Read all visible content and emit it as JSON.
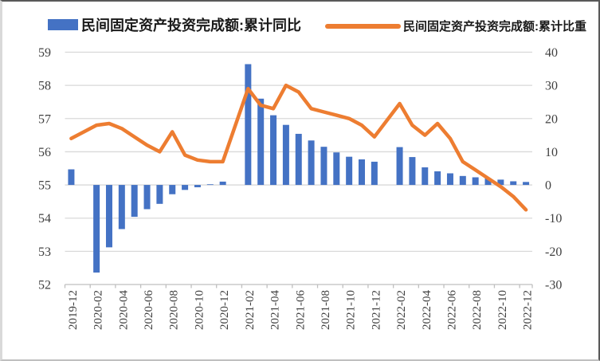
{
  "legend": [
    {
      "label": "民间固定资产投资完成额:累计同比",
      "type": "bar",
      "color": "#4472C4"
    },
    {
      "label": "民间固定资产投资完成额:累计比重",
      "type": "line",
      "color": "#ED7D31"
    }
  ],
  "colors": {
    "bar": "#4472C4",
    "line": "#ED7D31",
    "gridline": "#D9D9D9",
    "axis_line": "#BFBFBF",
    "axis_text": "#404040",
    "frame_dark": "#595959"
  },
  "chart_data": {
    "type": "bar+line",
    "title": "",
    "grid": "horizontal",
    "legend_position": "top",
    "categories": [
      "2019-12",
      "2020-01",
      "2020-02",
      "2020-03",
      "2020-04",
      "2020-05",
      "2020-06",
      "2020-07",
      "2020-08",
      "2020-09",
      "2020-10",
      "2020-11",
      "2020-12",
      "2021-01",
      "2021-02",
      "2021-03",
      "2021-04",
      "2021-05",
      "2021-06",
      "2021-07",
      "2021-08",
      "2021-09",
      "2021-10",
      "2021-11",
      "2021-12",
      "2022-01",
      "2022-02",
      "2022-03",
      "2022-04",
      "2022-05",
      "2022-06",
      "2022-07",
      "2022-08",
      "2022-09",
      "2022-10",
      "2022-11",
      "2022-12"
    ],
    "series": [
      {
        "name": "民间固定资产投资完成额:累计同比",
        "type": "bar",
        "axis": "right",
        "color": "#4472C4",
        "values": [
          4.7,
          null,
          -26.4,
          -18.8,
          -13.3,
          -9.6,
          -7.3,
          -5.7,
          -2.8,
          -1.5,
          -0.7,
          0.2,
          1.0,
          null,
          36.4,
          26.0,
          21.0,
          18.1,
          15.4,
          13.4,
          11.5,
          9.8,
          8.5,
          7.7,
          7.0,
          null,
          11.4,
          8.4,
          5.3,
          4.1,
          3.5,
          2.7,
          2.3,
          2.0,
          1.6,
          1.1,
          0.9
        ]
      },
      {
        "name": "民间固定资产投资完成额:累计比重",
        "type": "line",
        "axis": "left",
        "color": "#ED7D31",
        "values": [
          56.4,
          null,
          56.8,
          56.85,
          56.7,
          56.45,
          56.2,
          56.0,
          56.6,
          55.9,
          55.75,
          55.7,
          55.7,
          null,
          57.9,
          57.4,
          57.3,
          58.0,
          57.8,
          57.3,
          57.2,
          57.1,
          57.0,
          56.8,
          56.45,
          null,
          57.45,
          56.8,
          56.5,
          56.85,
          56.4,
          55.7,
          55.45,
          55.2,
          54.95,
          54.65,
          54.25
        ]
      }
    ],
    "left_axis": {
      "min": 52,
      "max": 59,
      "ticks": [
        52,
        53,
        54,
        55,
        56,
        57,
        58,
        59
      ]
    },
    "right_axis": {
      "min": -30,
      "max": 40,
      "ticks": [
        -30,
        -20,
        -10,
        0,
        10,
        20,
        30,
        40
      ]
    },
    "x_tick_labels": [
      "2019-12",
      "2020-02",
      "2020-04",
      "2020-06",
      "2020-08",
      "2020-10",
      "2020-12",
      "2021-02",
      "2021-04",
      "2021-06",
      "2021-08",
      "2021-10",
      "2021-12",
      "2022-02",
      "2022-04",
      "2022-06",
      "2022-08",
      "2022-10",
      "2022-12"
    ]
  }
}
